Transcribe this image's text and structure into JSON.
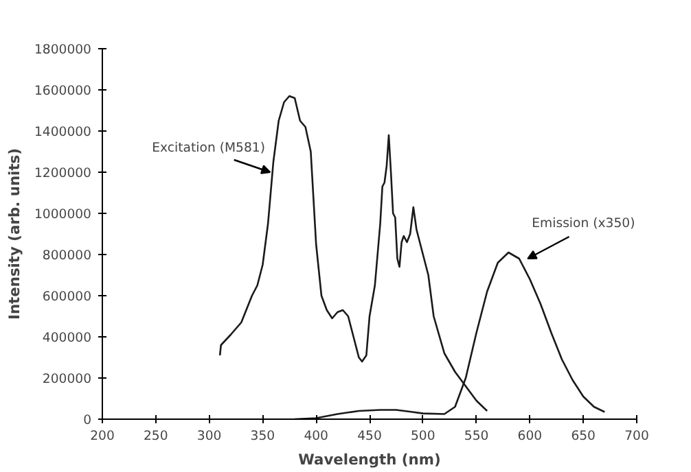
{
  "chart_data": {
    "type": "line",
    "xlabel": "Wavelength (nm)",
    "ylabel": "Intensity (arb. units)",
    "xlim": [
      200,
      700
    ],
    "ylim": [
      0,
      1800000
    ],
    "xticks": [
      200,
      250,
      300,
      350,
      400,
      450,
      500,
      550,
      600,
      650,
      700
    ],
    "yticks": [
      0,
      200000,
      400000,
      600000,
      800000,
      1000000,
      1200000,
      1400000,
      1600000,
      1800000
    ],
    "grid": false,
    "marker": "none",
    "line_style": "solid",
    "series": [
      {
        "color": "#1a1a1a",
        "x": [
          310,
          311,
          320,
          330,
          340,
          345,
          350,
          355,
          360,
          365,
          370,
          375,
          380,
          385,
          390,
          395,
          400,
          405,
          410,
          415,
          420,
          425,
          430,
          435,
          440,
          443,
          447,
          450,
          455,
          460,
          462,
          464,
          466,
          468,
          470,
          472,
          474,
          476,
          478,
          480,
          482,
          485,
          488,
          491,
          494,
          500,
          505,
          510,
          520,
          530,
          540,
          550,
          560
        ],
        "values": [
          310000,
          360000,
          410000,
          470000,
          600000,
          650000,
          750000,
          950000,
          1250000,
          1450000,
          1540000,
          1570000,
          1560000,
          1450000,
          1420000,
          1300000,
          850000,
          600000,
          530000,
          490000,
          520000,
          530000,
          500000,
          400000,
          300000,
          280000,
          310000,
          500000,
          650000,
          950000,
          1130000,
          1150000,
          1230000,
          1380000,
          1200000,
          1000000,
          980000,
          780000,
          740000,
          860000,
          890000,
          860000,
          900000,
          1030000,
          920000,
          800000,
          700000,
          500000,
          320000,
          230000,
          160000,
          90000,
          40000
        ]
      },
      {
        "color": "#1a1a1a",
        "x": [
          380,
          400,
          420,
          440,
          460,
          475,
          490,
          500,
          520,
          530,
          540,
          550,
          560,
          570,
          580,
          590,
          600,
          610,
          620,
          630,
          640,
          650,
          660,
          670
        ],
        "values": [
          0,
          5000,
          25000,
          40000,
          45000,
          45000,
          35000,
          28000,
          25000,
          60000,
          200000,
          420000,
          620000,
          760000,
          810000,
          780000,
          680000,
          560000,
          420000,
          290000,
          190000,
          110000,
          60000,
          35000
        ]
      }
    ],
    "annotations": [
      {
        "text": "Excitation (M581)",
        "x": 357,
        "y": 1200000
      },
      {
        "text": "Emission (x350)",
        "x": 598,
        "y": 780000
      }
    ]
  }
}
